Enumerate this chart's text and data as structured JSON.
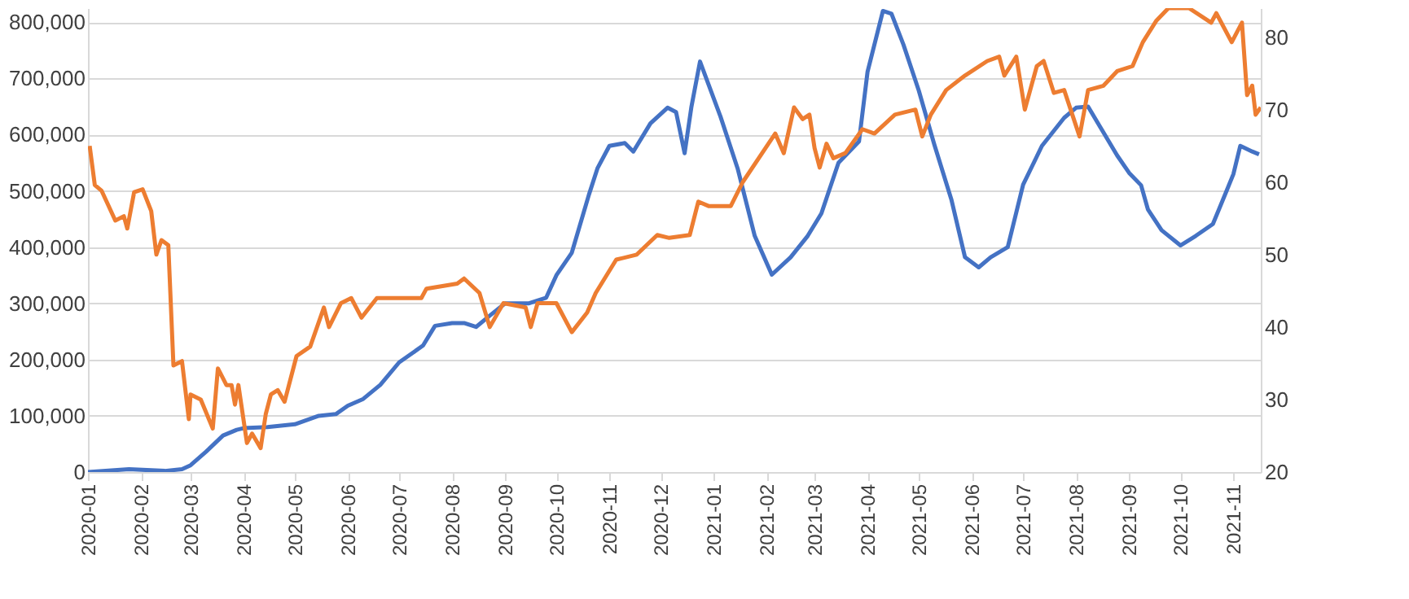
{
  "chart_data": {
    "type": "line",
    "xlim": [
      "2020-01-01",
      "2021-11-17"
    ],
    "xticks": [
      "2020-01",
      "2020-02",
      "2020-03",
      "2020-04",
      "2020-05",
      "2020-06",
      "2020-07",
      "2020-08",
      "2020-09",
      "2020-10",
      "2020-11",
      "2020-12",
      "2021-01",
      "2021-02",
      "2021-03",
      "2021-04",
      "2021-05",
      "2021-06",
      "2021-07",
      "2021-08",
      "2021-09",
      "2021-10",
      "2021-11"
    ],
    "ylim": [
      0,
      825000
    ],
    "yticks": [
      0,
      {
        "value": 100000,
        "label": "100,000"
      },
      {
        "value": 200000,
        "label": "200,000"
      },
      {
        "value": 300000,
        "label": "300,000"
      },
      {
        "value": 400000,
        "label": "400,000"
      },
      {
        "value": 500000,
        "label": "500,000"
      },
      {
        "value": 600000,
        "label": "600,000"
      },
      {
        "value": 700000,
        "label": "700,000"
      },
      {
        "value": 800000,
        "label": "800,000"
      }
    ],
    "y2lim": [
      20,
      84
    ],
    "y2ticks": [
      20,
      30,
      40,
      50,
      60,
      70,
      80
    ],
    "grid": "y",
    "line_style": "solid",
    "series": [
      {
        "color": "#4472c4",
        "x": [
          "2020-01-01",
          "2020-01-25",
          "2020-02-15",
          "2020-02-25",
          "2020-03-01",
          "2020-03-10",
          "2020-03-20",
          "2020-03-28",
          "2020-04-01",
          "2020-04-15",
          "2020-05-01",
          "2020-05-15",
          "2020-05-25",
          "2020-06-01",
          "2020-06-10",
          "2020-06-20",
          "2020-07-01",
          "2020-07-15",
          "2020-07-22",
          "2020-08-01",
          "2020-08-08",
          "2020-08-15",
          "2020-08-23",
          "2020-09-01",
          "2020-09-15",
          "2020-09-25",
          "2020-10-01",
          "2020-10-10",
          "2020-10-20",
          "2020-10-25",
          "2020-11-01",
          "2020-11-10",
          "2020-11-15",
          "2020-11-25",
          "2020-12-05",
          "2020-12-10",
          "2020-12-15",
          "2020-12-19",
          "2020-12-24",
          "2021-01-05",
          "2021-01-15",
          "2021-01-25",
          "2021-02-04",
          "2021-02-15",
          "2021-02-25",
          "2021-03-05",
          "2021-03-15",
          "2021-03-27",
          "2021-04-01",
          "2021-04-10",
          "2021-04-15",
          "2021-04-22",
          "2021-05-01",
          "2021-05-10",
          "2021-05-20",
          "2021-05-28",
          "2021-06-05",
          "2021-06-12",
          "2021-06-22",
          "2021-07-01",
          "2021-07-12",
          "2021-07-25",
          "2021-08-01",
          "2021-08-08",
          "2021-08-15",
          "2021-08-25",
          "2021-09-01",
          "2021-09-08",
          "2021-09-12",
          "2021-09-20",
          "2021-10-01",
          "2021-10-10",
          "2021-10-20",
          "2021-10-28",
          "2021-11-01",
          "2021-11-05",
          "2021-11-12",
          "2021-11-16"
        ],
        "values": [
          0,
          5000,
          2000,
          5000,
          12000,
          36000,
          65000,
          75000,
          78000,
          80000,
          85000,
          100000,
          103000,
          118000,
          130000,
          155000,
          195000,
          225000,
          260000,
          265000,
          265000,
          258000,
          278000,
          300000,
          300000,
          310000,
          350000,
          390000,
          493000,
          540000,
          580000,
          585000,
          570000,
          620000,
          648000,
          640000,
          567000,
          650000,
          730000,
          632000,
          540000,
          420000,
          351000,
          382000,
          420000,
          460000,
          550000,
          588000,
          712000,
          820000,
          815000,
          760000,
          678000,
          583000,
          485000,
          382000,
          364000,
          382000,
          400000,
          511000,
          580000,
          630000,
          648000,
          650000,
          614000,
          563000,
          532000,
          510000,
          467000,
          430000,
          403000,
          420000,
          441000,
          500000,
          530000,
          580000,
          570000,
          565000
        ]
      },
      {
        "color": "#ed7d31",
        "axis": "y2",
        "x": [
          "2020-01-02",
          "2020-01-05",
          "2020-01-09",
          "2020-01-17",
          "2020-01-22",
          "2020-01-24",
          "2020-01-28",
          "2020-02-02",
          "2020-02-07",
          "2020-02-10",
          "2020-02-13",
          "2020-02-17",
          "2020-02-20",
          "2020-02-25",
          "2020-02-29",
          "2020-03-01",
          "2020-03-07",
          "2020-03-14",
          "2020-03-17",
          "2020-03-22",
          "2020-03-25",
          "2020-03-27",
          "2020-03-29",
          "2020-04-03",
          "2020-04-06",
          "2020-04-11",
          "2020-04-14",
          "2020-04-17",
          "2020-04-21",
          "2020-04-25",
          "2020-05-02",
          "2020-05-10",
          "2020-05-18",
          "2020-05-21",
          "2020-05-28",
          "2020-06-03",
          "2020-06-09",
          "2020-06-18",
          "2020-07-01",
          "2020-07-14",
          "2020-07-17",
          "2020-08-04",
          "2020-08-08",
          "2020-08-17",
          "2020-08-23",
          "2020-08-31",
          "2020-09-13",
          "2020-09-16",
          "2020-09-20",
          "2020-10-01",
          "2020-10-10",
          "2020-10-19",
          "2020-10-24",
          "2020-11-05",
          "2020-11-17",
          "2020-11-29",
          "2020-12-06",
          "2020-12-18",
          "2020-12-23",
          "2020-12-29",
          "2021-01-11",
          "2021-01-18",
          "2021-02-02",
          "2021-02-06",
          "2021-02-11",
          "2021-02-17",
          "2021-02-22",
          "2021-02-26",
          "2021-03-01",
          "2021-03-04",
          "2021-03-08",
          "2021-03-12",
          "2021-03-19",
          "2021-03-29",
          "2021-04-05",
          "2021-04-17",
          "2021-04-29",
          "2021-05-03",
          "2021-05-08",
          "2021-05-17",
          "2021-05-28",
          "2021-06-10",
          "2021-06-17",
          "2021-06-20",
          "2021-06-27",
          "2021-07-02",
          "2021-07-09",
          "2021-07-13",
          "2021-07-19",
          "2021-07-25",
          "2021-08-03",
          "2021-08-08",
          "2021-08-17",
          "2021-08-25",
          "2021-09-03",
          "2021-09-09",
          "2021-09-17",
          "2021-09-24",
          "2021-10-06",
          "2021-10-19",
          "2021-10-22",
          "2021-10-31",
          "2021-11-06",
          "2021-11-09",
          "2021-11-12",
          "2021-11-14",
          "2021-11-17"
        ],
        "values": [
          65,
          59.6,
          58.8,
          54.7,
          55.3,
          53.6,
          58.6,
          59,
          56,
          50,
          52,
          51.3,
          34.7,
          35.3,
          27.3,
          30.7,
          30,
          26,
          34.3,
          32,
          32,
          29.3,
          32,
          24,
          25.3,
          23.3,
          28,
          30.7,
          31.3,
          29.7,
          36,
          37.3,
          42.7,
          40,
          43.3,
          44,
          41.3,
          44,
          44,
          44,
          45.3,
          46,
          46.7,
          44.7,
          40,
          43.3,
          42.7,
          40,
          43.3,
          43.3,
          39.3,
          42,
          44.7,
          49.3,
          50,
          52.7,
          52.3,
          52.7,
          57.3,
          56.7,
          56.7,
          60,
          65.3,
          66.7,
          64,
          70.3,
          68.7,
          69.3,
          64.7,
          62,
          65.3,
          63.3,
          64,
          67.3,
          66.7,
          69.3,
          70,
          66.3,
          69.3,
          72.7,
          74.7,
          76.7,
          77.3,
          74.7,
          77.3,
          70,
          76,
          76.7,
          72.3,
          72.7,
          66.3,
          72.7,
          73.3,
          75.3,
          76,
          79.3,
          82.3,
          84,
          84,
          82,
          83.3,
          79.3,
          82,
          72,
          73.3,
          69.3,
          70.3
        ]
      }
    ]
  }
}
